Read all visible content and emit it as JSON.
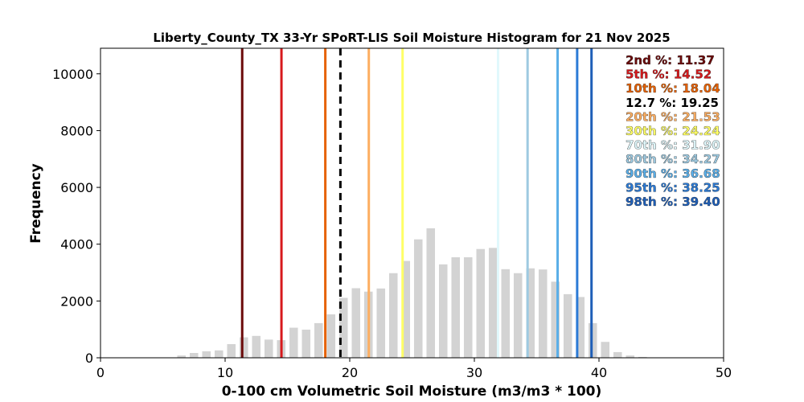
{
  "chart_data": {
    "type": "bar",
    "title": "Liberty_County_TX 33-Yr SPoRT-LIS Soil Moisture Histogram for 21 Nov 2025",
    "xlabel": "0-100 cm Volumetric Soil Moisture (m3/m3 * 100)",
    "ylabel": "Frequency",
    "xlim": [
      0,
      50
    ],
    "ylim": [
      0,
      10900
    ],
    "xticks": [
      "0",
      "10",
      "20",
      "30",
      "40",
      "50"
    ],
    "yticks": [
      "0",
      "2000",
      "4000",
      "6000",
      "8000",
      "10000"
    ],
    "xtick_values": [
      0,
      10,
      20,
      30,
      40,
      50
    ],
    "ytick_values": [
      0,
      2000,
      4000,
      6000,
      8000,
      10000
    ],
    "bins": [
      {
        "x": 6.5,
        "y": 80
      },
      {
        "x": 7.5,
        "y": 170
      },
      {
        "x": 8.5,
        "y": 230
      },
      {
        "x": 9.5,
        "y": 260
      },
      {
        "x": 10.5,
        "y": 480
      },
      {
        "x": 11.5,
        "y": 720
      },
      {
        "x": 12.5,
        "y": 770
      },
      {
        "x": 13.5,
        "y": 640
      },
      {
        "x": 14.5,
        "y": 620
      },
      {
        "x": 15.5,
        "y": 1060
      },
      {
        "x": 16.5,
        "y": 990
      },
      {
        "x": 17.5,
        "y": 1220
      },
      {
        "x": 18.5,
        "y": 1530
      },
      {
        "x": 19.5,
        "y": 2110
      },
      {
        "x": 20.5,
        "y": 2450
      },
      {
        "x": 21.5,
        "y": 2330
      },
      {
        "x": 22.5,
        "y": 2440
      },
      {
        "x": 23.5,
        "y": 2980
      },
      {
        "x": 24.5,
        "y": 3410
      },
      {
        "x": 25.5,
        "y": 4170
      },
      {
        "x": 26.5,
        "y": 4560
      },
      {
        "x": 27.5,
        "y": 3290
      },
      {
        "x": 28.5,
        "y": 3540
      },
      {
        "x": 29.5,
        "y": 3540
      },
      {
        "x": 30.5,
        "y": 3830
      },
      {
        "x": 31.5,
        "y": 3870
      },
      {
        "x": 32.5,
        "y": 3120
      },
      {
        "x": 33.5,
        "y": 2980
      },
      {
        "x": 34.5,
        "y": 3150
      },
      {
        "x": 35.5,
        "y": 3110
      },
      {
        "x": 36.5,
        "y": 2680
      },
      {
        "x": 37.5,
        "y": 2240
      },
      {
        "x": 38.5,
        "y": 2140
      },
      {
        "x": 39.5,
        "y": 1220
      },
      {
        "x": 40.5,
        "y": 560
      },
      {
        "x": 41.5,
        "y": 200
      },
      {
        "x": 42.5,
        "y": 80
      },
      {
        "x": 43.5,
        "y": 30
      }
    ],
    "bar_color": "#d3d3d3",
    "percentile_lines": [
      {
        "label": "2nd %",
        "value_text": "11.37",
        "value": 11.37,
        "color": "#6b0a0a",
        "text_color": "#6b0a0a",
        "dashed": false
      },
      {
        "label": "5th %",
        "value_text": "14.52",
        "value": 14.52,
        "color": "#d7191c",
        "text_color": "#d7191c",
        "dashed": false
      },
      {
        "label": "10th %",
        "value_text": "18.04",
        "value": 18.04,
        "color": "#e66101",
        "text_color": "#e66101",
        "dashed": false
      },
      {
        "label": "12.7 %",
        "value_text": "19.25",
        "value": 19.25,
        "color": "#000000",
        "text_color": "#000000",
        "dashed": true
      },
      {
        "label": "20th %",
        "value_text": "21.53",
        "value": 21.53,
        "color": "#fdae61",
        "text_color": "#fdae61",
        "dashed": false
      },
      {
        "label": "30th %",
        "value_text": "24.24",
        "value": 24.24,
        "color": "#ffff66",
        "text_color": "#ffff66",
        "dashed": false
      },
      {
        "label": "70th %",
        "value_text": "31.90",
        "value": 31.9,
        "color": "#e0f8fc",
        "text_color": "#e0f8fc",
        "dashed": false
      },
      {
        "label": "80th %",
        "value_text": "34.27",
        "value": 34.27,
        "color": "#9ecae1",
        "text_color": "#9ecae1",
        "dashed": false
      },
      {
        "label": "90th %",
        "value_text": "36.68",
        "value": 36.68,
        "color": "#5aaee8",
        "text_color": "#5aaee8",
        "dashed": false
      },
      {
        "label": "95th %",
        "value_text": "38.25",
        "value": 38.25,
        "color": "#2c7bd6",
        "text_color": "#2c7bd6",
        "dashed": false
      },
      {
        "label": "98th %",
        "value_text": "39.40",
        "value": 39.4,
        "color": "#1f5fb8",
        "text_color": "#1f5fb8",
        "dashed": false
      }
    ],
    "legend_position": "top-right",
    "grid": false
  }
}
